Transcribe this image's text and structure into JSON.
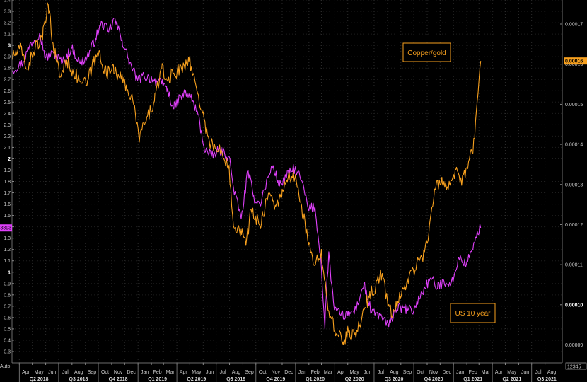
{
  "chart_data": {
    "type": "line",
    "title": "",
    "x_range": [
      "2018-03-15",
      "2021-09-10"
    ],
    "month_labels": [
      "Apr",
      "May",
      "Jun",
      "Jul",
      "Aug",
      "Sep",
      "Oct",
      "Nov",
      "Dec",
      "Jan",
      "Feb",
      "Mar",
      "Apr",
      "May",
      "Jun",
      "Jul",
      "Aug",
      "Sep",
      "Oct",
      "Nov",
      "Dec",
      "Jan",
      "Feb",
      "Mar",
      "Apr",
      "May",
      "Jun",
      "Jul",
      "Aug",
      "Sep",
      "Oct",
      "Nov",
      "Dec",
      "Jan",
      "Feb",
      "Mar",
      "Apr",
      "May",
      "Jun",
      "Jul",
      "Aug"
    ],
    "quarter_labels": [
      "Q2 2018",
      "Q3 2018",
      "Q4 2018",
      "Q1 2019",
      "Q2 2019",
      "Q3 2019",
      "Q4 2019",
      "Q1 2020",
      "Q2 2020",
      "Q3 2020",
      "Q4 2020",
      "Q1 2021",
      "Q2 2021",
      "Q3 2021"
    ],
    "left_axis": {
      "ylim": [
        0.2,
        3.4
      ],
      "ticks": [
        "0.3",
        "0.4",
        "0.5",
        "0.6",
        "0.7",
        "0.8",
        "0.9",
        "1",
        "1.1",
        "1.2",
        "1.3",
        "1.4",
        "1.5",
        "1.6",
        "1.7",
        "1.8",
        "1.9",
        "2",
        "2.1",
        "2.2",
        "2.3",
        "2.4",
        "2.5",
        "2.6",
        "2.7",
        "2.8",
        "2.9",
        "3",
        "3.1",
        "3.2",
        "3.3",
        "3.4"
      ],
      "bold_ticks": [
        "1",
        "2",
        "3"
      ],
      "corner_label": "Auto",
      "last_value_label": "1.3893"
    },
    "right_axis": {
      "ylim": [
        8.55e-05,
        0.000176
      ],
      "ticks": [
        "0.00009",
        "0.00010",
        "0.00011",
        "0.00012",
        "0.00013",
        "0.00014",
        "0.00015",
        "0.00016",
        "0.00017"
      ],
      "bold_ticks": [
        "0.00010"
      ],
      "corner_label": "12345",
      "last_value_label": "0.00016"
    },
    "grid": true,
    "series": [
      {
        "name": "US 10 year",
        "axis": "left",
        "color": "#e040fb",
        "points": [
          [
            "2018-03-15",
            2.78
          ],
          [
            "2018-04-10",
            2.85
          ],
          [
            "2018-04-25",
            3.0
          ],
          [
            "2018-05-18",
            3.11
          ],
          [
            "2018-06-01",
            2.89
          ],
          [
            "2018-06-20",
            2.93
          ],
          [
            "2018-07-10",
            2.85
          ],
          [
            "2018-08-01",
            2.98
          ],
          [
            "2018-08-20",
            2.84
          ],
          [
            "2018-09-05",
            2.9
          ],
          [
            "2018-09-25",
            3.06
          ],
          [
            "2018-10-10",
            3.2
          ],
          [
            "2018-10-25",
            3.12
          ],
          [
            "2018-11-08",
            3.24
          ],
          [
            "2018-11-25",
            3.05
          ],
          [
            "2018-12-10",
            2.88
          ],
          [
            "2018-12-31",
            2.69
          ],
          [
            "2019-01-15",
            2.73
          ],
          [
            "2019-02-05",
            2.7
          ],
          [
            "2019-02-25",
            2.66
          ],
          [
            "2019-03-08",
            2.64
          ],
          [
            "2019-03-25",
            2.44
          ],
          [
            "2019-04-05",
            2.52
          ],
          [
            "2019-04-20",
            2.58
          ],
          [
            "2019-05-03",
            2.55
          ],
          [
            "2019-05-20",
            2.39
          ],
          [
            "2019-06-03",
            2.1
          ],
          [
            "2019-06-20",
            2.02
          ],
          [
            "2019-07-10",
            2.08
          ],
          [
            "2019-07-31",
            2.02
          ],
          [
            "2019-08-10",
            1.75
          ],
          [
            "2019-08-28",
            1.47
          ],
          [
            "2019-09-13",
            1.9
          ],
          [
            "2019-09-25",
            1.67
          ],
          [
            "2019-10-10",
            1.6
          ],
          [
            "2019-10-30",
            1.84
          ],
          [
            "2019-11-10",
            1.94
          ],
          [
            "2019-11-25",
            1.76
          ],
          [
            "2019-12-10",
            1.84
          ],
          [
            "2019-12-31",
            1.92
          ],
          [
            "2020-01-15",
            1.81
          ],
          [
            "2020-01-31",
            1.55
          ],
          [
            "2020-02-15",
            1.58
          ],
          [
            "2020-02-28",
            1.15
          ],
          [
            "2020-03-09",
            0.5
          ],
          [
            "2020-03-18",
            1.18
          ],
          [
            "2020-03-31",
            0.67
          ],
          [
            "2020-04-15",
            0.62
          ],
          [
            "2020-05-01",
            0.62
          ],
          [
            "2020-05-20",
            0.67
          ],
          [
            "2020-06-08",
            0.9
          ],
          [
            "2020-06-25",
            0.64
          ],
          [
            "2020-07-15",
            0.62
          ],
          [
            "2020-08-04",
            0.52
          ],
          [
            "2020-08-20",
            0.68
          ],
          [
            "2020-09-10",
            0.68
          ],
          [
            "2020-10-01",
            0.66
          ],
          [
            "2020-10-20",
            0.82
          ],
          [
            "2020-11-10",
            0.95
          ],
          [
            "2020-11-25",
            0.86
          ],
          [
            "2020-12-10",
            0.92
          ],
          [
            "2020-12-31",
            0.91
          ],
          [
            "2021-01-12",
            1.13
          ],
          [
            "2021-01-31",
            1.07
          ],
          [
            "2021-02-15",
            1.2
          ],
          [
            "2021-02-25",
            1.36
          ],
          [
            "2021-03-05",
            1.39
          ]
        ]
      },
      {
        "name": "Copper/gold",
        "axis": "right",
        "color": "#f7a01e",
        "points": [
          [
            "2018-03-15",
            0.0001618
          ],
          [
            "2018-04-05",
            0.0001638
          ],
          [
            "2018-04-20",
            0.0001588
          ],
          [
            "2018-05-08",
            0.0001645
          ],
          [
            "2018-05-25",
            0.0001662
          ],
          [
            "2018-06-07",
            0.0001748
          ],
          [
            "2018-06-18",
            0.0001653
          ],
          [
            "2018-07-05",
            0.0001568
          ],
          [
            "2018-07-20",
            0.000161
          ],
          [
            "2018-08-15",
            0.0001563
          ],
          [
            "2018-09-05",
            0.0001548
          ],
          [
            "2018-09-20",
            0.0001605
          ],
          [
            "2018-10-05",
            0.0001628
          ],
          [
            "2018-10-20",
            0.0001572
          ],
          [
            "2018-11-05",
            0.0001598
          ],
          [
            "2018-11-20",
            0.0001565
          ],
          [
            "2018-12-05",
            0.0001548
          ],
          [
            "2018-12-20",
            0.0001508
          ],
          [
            "2019-01-03",
            0.0001418
          ],
          [
            "2019-01-20",
            0.0001458
          ],
          [
            "2019-02-08",
            0.0001508
          ],
          [
            "2019-02-25",
            0.0001588
          ],
          [
            "2019-03-10",
            0.0001558
          ],
          [
            "2019-03-25",
            0.0001578
          ],
          [
            "2019-04-12",
            0.0001588
          ],
          [
            "2019-04-28",
            0.0001618
          ],
          [
            "2019-05-15",
            0.0001548
          ],
          [
            "2019-05-31",
            0.0001478
          ],
          [
            "2019-06-15",
            0.0001408
          ],
          [
            "2019-07-01",
            0.0001388
          ],
          [
            "2019-07-15",
            0.0001378
          ],
          [
            "2019-07-31",
            0.0001348
          ],
          [
            "2019-08-10",
            0.0001198
          ],
          [
            "2019-08-28",
            0.0001188
          ],
          [
            "2019-09-08",
            0.0001148
          ],
          [
            "2019-09-20",
            0.0001238
          ],
          [
            "2019-10-10",
            0.0001198
          ],
          [
            "2019-10-30",
            0.0001278
          ],
          [
            "2019-11-15",
            0.0001248
          ],
          [
            "2019-11-30",
            0.0001268
          ],
          [
            "2019-12-15",
            0.0001318
          ],
          [
            "2019-12-31",
            0.0001318
          ],
          [
            "2020-01-15",
            0.0001248
          ],
          [
            "2020-01-31",
            0.0001148
          ],
          [
            "2020-02-15",
            0.0001098
          ],
          [
            "2020-03-01",
            0.0001138
          ],
          [
            "2020-03-10",
            0.0001058
          ],
          [
            "2020-03-20",
            9.68e-05
          ],
          [
            "2020-04-05",
            9.28e-05
          ],
          [
            "2020-04-20",
            9.08e-05
          ],
          [
            "2020-05-05",
            9.35e-05
          ],
          [
            "2020-05-20",
            9.18e-05
          ],
          [
            "2020-06-05",
            9.85e-05
          ],
          [
            "2020-06-20",
            0.0001018
          ],
          [
            "2020-07-05",
            0.0001048
          ],
          [
            "2020-07-20",
            0.0001078
          ],
          [
            "2020-08-01",
            0.0001008
          ],
          [
            "2020-08-12",
            9.68e-05
          ],
          [
            "2020-08-25",
            0.0001008
          ],
          [
            "2020-09-10",
            0.0001048
          ],
          [
            "2020-09-30",
            0.0001088
          ],
          [
            "2020-10-20",
            0.0001118
          ],
          [
            "2020-11-05",
            0.0001178
          ],
          [
            "2020-11-20",
            0.0001288
          ],
          [
            "2020-12-05",
            0.0001318
          ],
          [
            "2020-12-20",
            0.0001288
          ],
          [
            "2021-01-05",
            0.0001338
          ],
          [
            "2021-01-20",
            0.0001298
          ],
          [
            "2021-02-05",
            0.0001358
          ],
          [
            "2021-02-15",
            0.0001378
          ],
          [
            "2021-02-25",
            0.0001508
          ],
          [
            "2021-03-05",
            0.0001608
          ]
        ]
      }
    ]
  }
}
